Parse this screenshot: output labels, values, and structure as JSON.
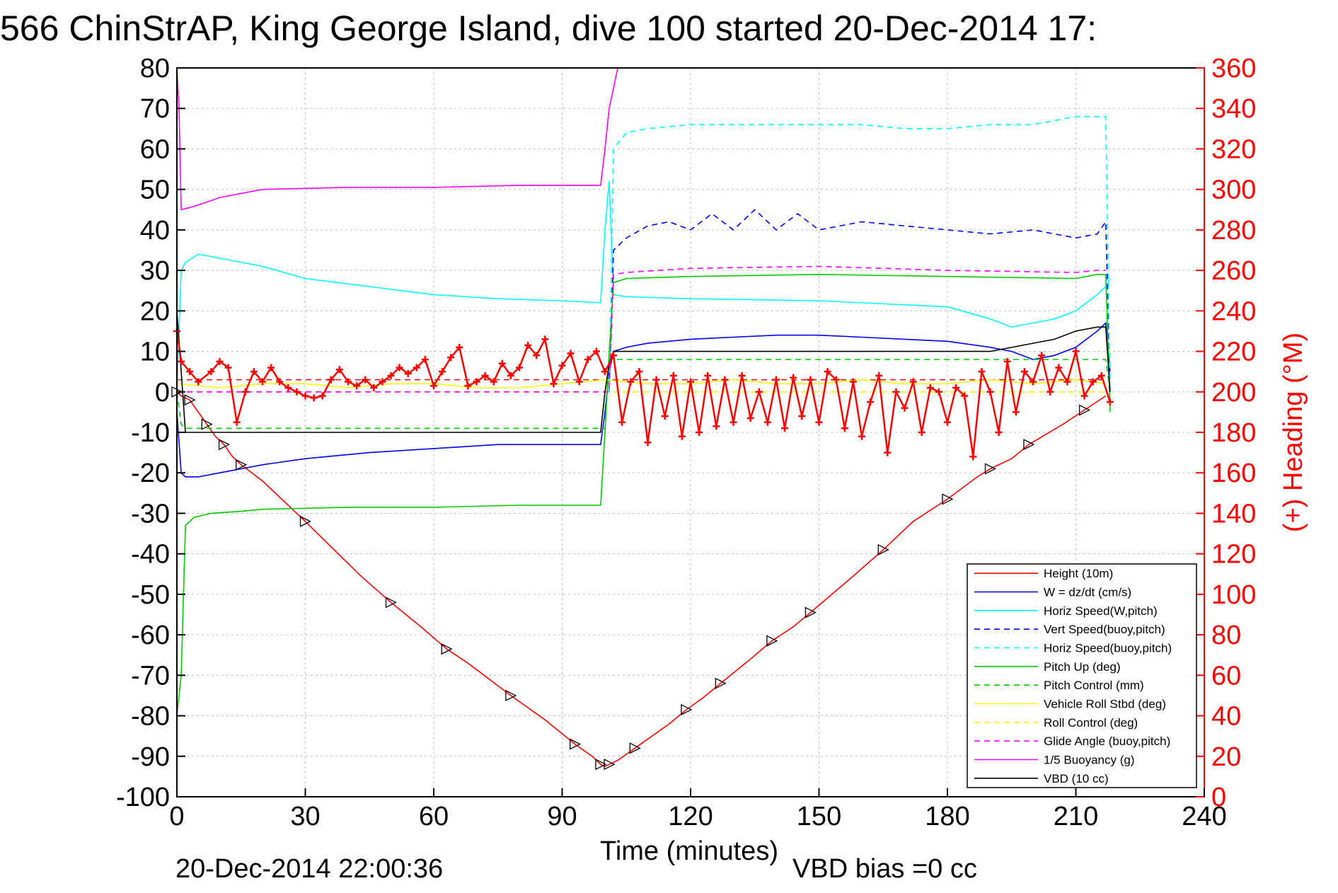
{
  "chart_data": {
    "type": "line",
    "title": "566 ChinStrAP, King George Island, dive 100 started 20-Dec-2014 17:",
    "xlabel": "Time (minutes)",
    "ylabel": "",
    "y2label": "(+) Heading (°M)",
    "xlim": [
      0,
      240
    ],
    "ylim": [
      -100,
      80
    ],
    "y2lim": [
      0,
      360
    ],
    "xticks": [
      "0",
      "30",
      "60",
      "90",
      "120",
      "150",
      "180",
      "210",
      "240"
    ],
    "yticks": [
      "80",
      "70",
      "60",
      "50",
      "40",
      "30",
      "20",
      "10",
      "0",
      "-10",
      "-20",
      "-30",
      "-40",
      "-50",
      "-60",
      "-70",
      "-80",
      "-90",
      "-100"
    ],
    "y2ticks": [
      "360",
      "340",
      "320",
      "300",
      "280",
      "260",
      "240",
      "220",
      "200",
      "180",
      "160",
      "140",
      "120",
      "100",
      "80",
      "60",
      "40",
      "20",
      "0"
    ],
    "grid": true,
    "legend_position": "bottom-right",
    "footer_date": "20-Dec-2014 22:00:36",
    "footer_note": "VBD bias =0 cc",
    "colors": {
      "heading": "#ff0000",
      "grid": "#bfbfbf"
    },
    "series": [
      {
        "name": "Height (10m)",
        "color": "#ff0000",
        "style": "solid",
        "x": [
          0,
          1,
          3,
          5,
          7,
          9,
          11,
          13,
          15,
          20,
          30,
          43,
          50,
          57,
          63,
          68,
          78,
          86,
          93,
          97,
          99,
          100,
          101,
          103,
          107,
          115,
          119,
          123,
          127,
          134,
          139,
          144,
          148,
          158,
          165,
          172,
          180,
          187,
          190,
          195,
          199,
          207,
          212,
          217
        ],
        "y": [
          0,
          -1,
          -2,
          -5,
          -8,
          -11,
          -13,
          -16,
          -18,
          -22,
          -32,
          -45.5,
          -52,
          -58,
          -63.5,
          -67,
          -75,
          -81,
          -87,
          -90,
          -92,
          -92.5,
          -92,
          -91,
          -88,
          -82,
          -78.5,
          -75.5,
          -72,
          -66,
          -61.5,
          -58,
          -54.5,
          -45.5,
          -39,
          -32,
          -26.5,
          -21,
          -19,
          -16.5,
          -13,
          -8,
          -4.5,
          -1
        ]
      },
      {
        "name": "W = dz/dt (cm/s)",
        "color": "#0000ff",
        "style": "solid",
        "x": [
          0,
          1,
          2,
          5,
          10,
          20,
          30,
          45,
          60,
          75,
          90,
          99,
          100,
          101,
          102,
          105,
          110,
          120,
          130,
          140,
          150,
          160,
          170,
          180,
          190,
          195,
          200,
          205,
          210,
          215,
          217,
          218
        ],
        "y": [
          -5,
          -20,
          -21,
          -21,
          -20,
          -18,
          -16.5,
          -15,
          -14,
          -13,
          -13,
          -13,
          -5,
          5,
          10,
          11,
          12,
          13,
          13.5,
          14,
          14,
          13.5,
          13,
          12.5,
          11,
          10,
          8,
          9,
          11,
          15,
          17,
          5
        ]
      },
      {
        "name": "Horiz Speed(W,pitch)",
        "color": "#00ffff",
        "style": "solid",
        "x": [
          0,
          1,
          2,
          5,
          10,
          20,
          30,
          45,
          60,
          75,
          90,
          99,
          100,
          101,
          102,
          105,
          120,
          150,
          180,
          190,
          195,
          200,
          205,
          210,
          215,
          217,
          218
        ],
        "y": [
          0,
          30,
          32,
          34,
          33,
          31,
          28,
          26,
          24,
          23,
          22.5,
          22,
          40,
          52,
          24,
          23.5,
          23,
          22.5,
          21,
          18,
          16,
          17,
          18,
          20,
          24,
          26,
          28
        ]
      },
      {
        "name": "Vert Speed(buoy,pitch)",
        "color": "#0000ff",
        "style": "dashed",
        "x": [
          101,
          102,
          105,
          110,
          115,
          120,
          125,
          130,
          135,
          140,
          145,
          150,
          160,
          170,
          180,
          190,
          200,
          210,
          215,
          217,
          218
        ],
        "y": [
          0,
          35,
          38,
          41,
          42,
          40,
          44,
          40,
          45,
          40,
          44,
          40,
          42,
          41,
          40,
          39,
          40,
          38,
          39,
          42,
          0
        ]
      },
      {
        "name": "Horiz Speed(buoy,pitch)",
        "color": "#00ffff",
        "style": "dashed",
        "x": [
          101,
          102,
          105,
          110,
          120,
          130,
          140,
          150,
          160,
          170,
          180,
          190,
          200,
          205,
          210,
          215,
          217,
          218
        ],
        "y": [
          0,
          60,
          64,
          65,
          66,
          66,
          66,
          66,
          66,
          65,
          65,
          66,
          66,
          67,
          68,
          68,
          68,
          0
        ]
      },
      {
        "name": "Pitch Up (deg)",
        "color": "#00cc00",
        "style": "solid",
        "x": [
          0,
          1,
          2,
          4,
          8,
          15,
          20,
          40,
          60,
          80,
          95,
          99,
          100,
          101,
          102,
          105,
          120,
          150,
          180,
          210,
          215,
          217,
          218
        ],
        "y": [
          -80,
          -70,
          -33,
          -31,
          -30,
          -29.5,
          -29,
          -28.5,
          -28.5,
          -28,
          -28,
          -28,
          -10,
          10,
          27,
          28,
          28.5,
          29,
          28.5,
          28,
          29,
          29,
          -5
        ]
      },
      {
        "name": "Pitch Control (mm)",
        "color": "#00cc00",
        "style": "dashed",
        "x": [
          0,
          1,
          2,
          100,
          101,
          102,
          217,
          218
        ],
        "y": [
          0,
          -8,
          -9,
          -9,
          8,
          8,
          8,
          0
        ]
      },
      {
        "name": "Vehicle Roll Stbd (deg)",
        "color": "#ffff00",
        "style": "solid",
        "x": [
          0,
          10,
          20,
          30,
          40,
          50,
          60,
          70,
          80,
          90,
          100,
          110,
          120,
          130,
          140,
          150,
          160,
          170,
          180,
          190,
          200,
          210,
          217
        ],
        "y": [
          2,
          1,
          2,
          2,
          1,
          2,
          2,
          1,
          1,
          2,
          3,
          2,
          2,
          3,
          2,
          2,
          3,
          2,
          2,
          3,
          2,
          3,
          2
        ]
      },
      {
        "name": "Roll Control (deg)",
        "color": "#ffff00",
        "style": "dashed",
        "x": [
          0,
          5,
          10,
          20,
          40,
          60,
          80,
          100,
          120,
          140,
          160,
          180,
          200,
          217
        ],
        "y": [
          0,
          0,
          0,
          0,
          0,
          0,
          0,
          0,
          0,
          0,
          0,
          0,
          0,
          0
        ]
      },
      {
        "name": "Glide Angle (buoy,pitch)",
        "color": "#ff00ff",
        "style": "dashed",
        "x": [
          0,
          2,
          50,
          99,
          100,
          101,
          102,
          105,
          120,
          150,
          180,
          210,
          215,
          217
        ],
        "y": [
          0,
          0,
          0,
          0,
          0,
          0,
          29,
          29.5,
          30.5,
          31,
          30,
          29.5,
          30,
          30
        ]
      },
      {
        "name": "1/5 Buoyancy (g)",
        "color": "#ff00ff",
        "style": "solid",
        "x": [
          0,
          0.5,
          1,
          3,
          6,
          10,
          20,
          40,
          60,
          80,
          90,
          99,
          100,
          101,
          103
        ],
        "y": [
          80,
          70,
          45,
          45.5,
          46.5,
          48,
          50,
          50.5,
          50.5,
          51,
          51,
          51,
          60,
          70,
          80
        ]
      },
      {
        "name": "VBD (10 cc)",
        "color": "#000000",
        "style": "solid",
        "x": [
          0,
          1,
          2,
          99,
          100,
          101,
          102,
          190,
          200,
          205,
          210,
          215,
          217,
          218
        ],
        "y": [
          20,
          5,
          -10,
          -10,
          0,
          7,
          10,
          10,
          12,
          13,
          15,
          16,
          16,
          0
        ]
      }
    ],
    "heading": {
      "name": "(+) Heading (°M)",
      "color": "#ff0000",
      "axis": "right",
      "x": [
        0,
        1,
        3,
        5,
        8,
        10,
        12,
        14,
        16,
        18,
        20,
        22,
        24,
        26,
        28,
        30,
        32,
        34,
        36,
        38,
        40,
        42,
        44,
        46,
        48,
        50,
        52,
        54,
        56,
        58,
        60,
        62,
        64,
        66,
        68,
        70,
        72,
        74,
        76,
        78,
        80,
        82,
        84,
        86,
        88,
        90,
        92,
        94,
        96,
        98,
        100,
        102,
        104,
        106,
        108,
        110,
        112,
        114,
        116,
        118,
        120,
        122,
        124,
        126,
        128,
        130,
        132,
        134,
        136,
        138,
        140,
        142,
        144,
        146,
        148,
        150,
        152,
        154,
        156,
        158,
        160,
        162,
        164,
        166,
        168,
        170,
        172,
        174,
        176,
        178,
        180,
        182,
        184,
        186,
        188,
        190,
        192,
        194,
        196,
        198,
        200,
        202,
        204,
        206,
        208,
        210,
        212,
        214,
        216,
        218
      ],
      "y": [
        230,
        215,
        210,
        205,
        210,
        215,
        212,
        185,
        200,
        210,
        205,
        212,
        205,
        202,
        200,
        198,
        197,
        198,
        206,
        211,
        205,
        203,
        206,
        202,
        205,
        208,
        212,
        209,
        212,
        216,
        203,
        210,
        217,
        222,
        203,
        205,
        208,
        205,
        214,
        208,
        212,
        223,
        218,
        226,
        204,
        213,
        219,
        205,
        216,
        220,
        210,
        218,
        185,
        205,
        210,
        175,
        206,
        188,
        208,
        178,
        205,
        180,
        208,
        183,
        206,
        185,
        208,
        187,
        200,
        185,
        206,
        182,
        207,
        188,
        206,
        185,
        210,
        206,
        182,
        205,
        178,
        195,
        208,
        170,
        200,
        192,
        205,
        180,
        202,
        200,
        185,
        202,
        198,
        168,
        210,
        200,
        180,
        215,
        190,
        210,
        205,
        218,
        200,
        212,
        205,
        220,
        198,
        205,
        208,
        195
      ]
    },
    "ref_lines": [
      {
        "color": "#ff0000",
        "style": "dashed",
        "value": 206,
        "axis": "right"
      }
    ]
  }
}
